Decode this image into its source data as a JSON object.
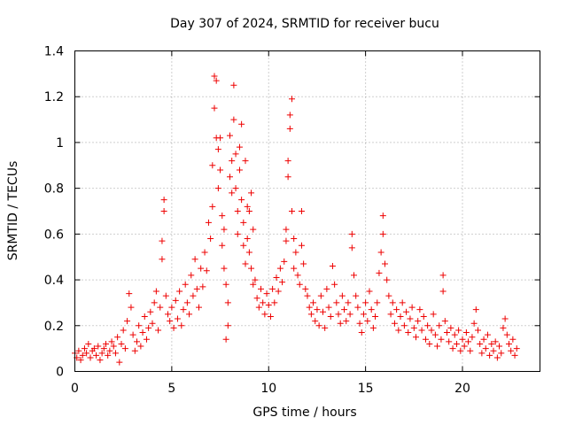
{
  "chart_data": {
    "type": "scatter",
    "title": "Day 307 of 2024, SRMTID for receiver bucu",
    "xlabel": "GPS time / hours",
    "ylabel": "SRMTID / TECUs",
    "xlim": [
      0,
      24
    ],
    "ylim": [
      0,
      1.4
    ],
    "xticks": [
      0,
      5,
      10,
      15,
      20
    ],
    "xtick_labels": [
      "0",
      "5",
      "10",
      "15",
      "20"
    ],
    "yticks": [
      0,
      0.2,
      0.4,
      0.6,
      0.8,
      1,
      1.2,
      1.4
    ],
    "ytick_labels": [
      "0",
      "0.2",
      "0.4",
      "0.6",
      "0.8",
      "1",
      "1.2",
      "1.4"
    ],
    "grid": true,
    "marker": "+",
    "series": [
      {
        "name": "SRMTID",
        "color": "#ee0000",
        "points": [
          [
            0.0,
            0.08
          ],
          [
            0.1,
            0.06
          ],
          [
            0.2,
            0.09
          ],
          [
            0.3,
            0.05
          ],
          [
            0.4,
            0.07
          ],
          [
            0.5,
            0.1
          ],
          [
            0.6,
            0.08
          ],
          [
            0.7,
            0.12
          ],
          [
            0.8,
            0.06
          ],
          [
            0.9,
            0.09
          ],
          [
            1.0,
            0.1
          ],
          [
            1.1,
            0.07
          ],
          [
            1.2,
            0.11
          ],
          [
            1.3,
            0.05
          ],
          [
            1.4,
            0.08
          ],
          [
            1.5,
            0.1
          ],
          [
            1.6,
            0.12
          ],
          [
            1.7,
            0.07
          ],
          [
            1.8,
            0.09
          ],
          [
            1.9,
            0.13
          ],
          [
            2.0,
            0.11
          ],
          [
            2.1,
            0.08
          ],
          [
            2.2,
            0.15
          ],
          [
            2.3,
            0.04
          ],
          [
            2.4,
            0.12
          ],
          [
            2.5,
            0.18
          ],
          [
            2.6,
            0.1
          ],
          [
            2.7,
            0.22
          ],
          [
            2.8,
            0.34
          ],
          [
            2.9,
            0.28
          ],
          [
            3.0,
            0.16
          ],
          [
            3.1,
            0.09
          ],
          [
            3.2,
            0.13
          ],
          [
            3.3,
            0.2
          ],
          [
            3.4,
            0.11
          ],
          [
            3.5,
            0.17
          ],
          [
            3.6,
            0.24
          ],
          [
            3.7,
            0.14
          ],
          [
            3.8,
            0.19
          ],
          [
            3.9,
            0.26
          ],
          [
            4.0,
            0.21
          ],
          [
            4.1,
            0.3
          ],
          [
            4.2,
            0.35
          ],
          [
            4.3,
            0.18
          ],
          [
            4.4,
            0.28
          ],
          [
            4.5,
            0.57
          ],
          [
            4.5,
            0.49
          ],
          [
            4.6,
            0.75
          ],
          [
            4.6,
            0.7
          ],
          [
            4.7,
            0.33
          ],
          [
            4.8,
            0.25
          ],
          [
            4.9,
            0.22
          ],
          [
            5.0,
            0.28
          ],
          [
            5.1,
            0.19
          ],
          [
            5.2,
            0.31
          ],
          [
            5.3,
            0.23
          ],
          [
            5.4,
            0.35
          ],
          [
            5.5,
            0.2
          ],
          [
            5.6,
            0.27
          ],
          [
            5.7,
            0.38
          ],
          [
            5.8,
            0.3
          ],
          [
            5.9,
            0.25
          ],
          [
            6.0,
            0.42
          ],
          [
            6.1,
            0.33
          ],
          [
            6.2,
            0.49
          ],
          [
            6.3,
            0.36
          ],
          [
            6.4,
            0.28
          ],
          [
            6.5,
            0.45
          ],
          [
            6.6,
            0.37
          ],
          [
            6.7,
            0.52
          ],
          [
            6.8,
            0.44
          ],
          [
            6.9,
            0.65
          ],
          [
            7.0,
            0.58
          ],
          [
            7.1,
            0.72
          ],
          [
            7.1,
            0.9
          ],
          [
            7.2,
            1.29
          ],
          [
            7.2,
            1.15
          ],
          [
            7.3,
            1.27
          ],
          [
            7.3,
            1.02
          ],
          [
            7.4,
            0.97
          ],
          [
            7.4,
            0.8
          ],
          [
            7.5,
            1.02
          ],
          [
            7.5,
            0.88
          ],
          [
            7.6,
            0.68
          ],
          [
            7.6,
            0.55
          ],
          [
            7.7,
            0.62
          ],
          [
            7.7,
            0.45
          ],
          [
            7.8,
            0.38
          ],
          [
            7.9,
            0.3
          ],
          [
            7.8,
            0.14
          ],
          [
            7.9,
            0.2
          ],
          [
            8.0,
            0.85
          ],
          [
            8.0,
            1.03
          ],
          [
            8.1,
            0.92
          ],
          [
            8.1,
            0.78
          ],
          [
            8.2,
            1.25
          ],
          [
            8.2,
            1.1
          ],
          [
            8.3,
            0.95
          ],
          [
            8.3,
            0.8
          ],
          [
            8.4,
            0.7
          ],
          [
            8.4,
            0.6
          ],
          [
            8.5,
            0.98
          ],
          [
            8.5,
            0.88
          ],
          [
            8.6,
            1.08
          ],
          [
            8.6,
            0.75
          ],
          [
            8.7,
            0.65
          ],
          [
            8.7,
            0.55
          ],
          [
            8.8,
            0.47
          ],
          [
            8.8,
            0.92
          ],
          [
            8.9,
            0.72
          ],
          [
            8.9,
            0.58
          ],
          [
            9.0,
            0.7
          ],
          [
            9.0,
            0.52
          ],
          [
            9.1,
            0.78
          ],
          [
            9.1,
            0.45
          ],
          [
            9.2,
            0.38
          ],
          [
            9.2,
            0.62
          ],
          [
            9.3,
            0.4
          ],
          [
            9.4,
            0.32
          ],
          [
            9.5,
            0.28
          ],
          [
            9.6,
            0.36
          ],
          [
            9.7,
            0.3
          ],
          [
            9.8,
            0.25
          ],
          [
            9.9,
            0.34
          ],
          [
            10.0,
            0.29
          ],
          [
            10.1,
            0.24
          ],
          [
            10.2,
            0.36
          ],
          [
            10.3,
            0.3
          ],
          [
            10.4,
            0.41
          ],
          [
            10.5,
            0.35
          ],
          [
            10.6,
            0.45
          ],
          [
            10.7,
            0.39
          ],
          [
            10.8,
            0.48
          ],
          [
            10.9,
            0.57
          ],
          [
            10.9,
            0.62
          ],
          [
            11.0,
            0.85
          ],
          [
            11.0,
            0.92
          ],
          [
            11.1,
            1.06
          ],
          [
            11.1,
            1.12
          ],
          [
            11.2,
            1.19
          ],
          [
            11.2,
            0.7
          ],
          [
            11.3,
            0.58
          ],
          [
            11.3,
            0.45
          ],
          [
            11.4,
            0.52
          ],
          [
            11.5,
            0.42
          ],
          [
            11.6,
            0.38
          ],
          [
            11.7,
            0.7
          ],
          [
            11.7,
            0.55
          ],
          [
            11.8,
            0.47
          ],
          [
            11.9,
            0.36
          ],
          [
            12.0,
            0.33
          ],
          [
            12.1,
            0.28
          ],
          [
            12.2,
            0.25
          ],
          [
            12.3,
            0.3
          ],
          [
            12.4,
            0.22
          ],
          [
            12.5,
            0.27
          ],
          [
            12.6,
            0.2
          ],
          [
            12.7,
            0.33
          ],
          [
            12.8,
            0.26
          ],
          [
            12.9,
            0.19
          ],
          [
            13.0,
            0.36
          ],
          [
            13.1,
            0.28
          ],
          [
            13.2,
            0.24
          ],
          [
            13.3,
            0.46
          ],
          [
            13.4,
            0.38
          ],
          [
            13.5,
            0.3
          ],
          [
            13.6,
            0.25
          ],
          [
            13.7,
            0.21
          ],
          [
            13.8,
            0.33
          ],
          [
            13.9,
            0.27
          ],
          [
            14.0,
            0.22
          ],
          [
            14.1,
            0.3
          ],
          [
            14.2,
            0.25
          ],
          [
            14.3,
            0.6
          ],
          [
            14.3,
            0.54
          ],
          [
            14.4,
            0.42
          ],
          [
            14.5,
            0.33
          ],
          [
            14.6,
            0.28
          ],
          [
            14.7,
            0.21
          ],
          [
            14.8,
            0.17
          ],
          [
            14.9,
            0.25
          ],
          [
            15.0,
            0.3
          ],
          [
            15.1,
            0.22
          ],
          [
            15.2,
            0.35
          ],
          [
            15.3,
            0.27
          ],
          [
            15.4,
            0.19
          ],
          [
            15.5,
            0.24
          ],
          [
            15.6,
            0.3
          ],
          [
            15.7,
            0.43
          ],
          [
            15.8,
            0.52
          ],
          [
            15.9,
            0.68
          ],
          [
            15.9,
            0.6
          ],
          [
            16.0,
            0.47
          ],
          [
            16.1,
            0.4
          ],
          [
            16.2,
            0.33
          ],
          [
            16.3,
            0.25
          ],
          [
            16.4,
            0.3
          ],
          [
            16.5,
            0.21
          ],
          [
            16.6,
            0.27
          ],
          [
            16.7,
            0.18
          ],
          [
            16.8,
            0.24
          ],
          [
            16.9,
            0.3
          ],
          [
            17.0,
            0.2
          ],
          [
            17.1,
            0.26
          ],
          [
            17.2,
            0.17
          ],
          [
            17.3,
            0.23
          ],
          [
            17.4,
            0.28
          ],
          [
            17.5,
            0.19
          ],
          [
            17.6,
            0.15
          ],
          [
            17.7,
            0.22
          ],
          [
            17.8,
            0.27
          ],
          [
            17.9,
            0.18
          ],
          [
            18.0,
            0.24
          ],
          [
            18.1,
            0.14
          ],
          [
            18.2,
            0.2
          ],
          [
            18.3,
            0.12
          ],
          [
            18.4,
            0.18
          ],
          [
            18.5,
            0.25
          ],
          [
            18.6,
            0.16
          ],
          [
            18.7,
            0.11
          ],
          [
            18.8,
            0.2
          ],
          [
            18.9,
            0.14
          ],
          [
            19.0,
            0.42
          ],
          [
            19.0,
            0.35
          ],
          [
            19.1,
            0.22
          ],
          [
            19.2,
            0.17
          ],
          [
            19.3,
            0.13
          ],
          [
            19.4,
            0.19
          ],
          [
            19.5,
            0.1
          ],
          [
            19.6,
            0.16
          ],
          [
            19.7,
            0.12
          ],
          [
            19.8,
            0.18
          ],
          [
            19.9,
            0.09
          ],
          [
            20.0,
            0.14
          ],
          [
            20.1,
            0.11
          ],
          [
            20.2,
            0.17
          ],
          [
            20.3,
            0.13
          ],
          [
            20.4,
            0.09
          ],
          [
            20.5,
            0.15
          ],
          [
            20.6,
            0.21
          ],
          [
            20.7,
            0.27
          ],
          [
            20.8,
            0.18
          ],
          [
            20.9,
            0.12
          ],
          [
            21.0,
            0.08
          ],
          [
            21.1,
            0.14
          ],
          [
            21.2,
            0.1
          ],
          [
            21.3,
            0.16
          ],
          [
            21.4,
            0.07
          ],
          [
            21.5,
            0.12
          ],
          [
            21.6,
            0.09
          ],
          [
            21.7,
            0.13
          ],
          [
            21.8,
            0.06
          ],
          [
            21.9,
            0.11
          ],
          [
            22.0,
            0.08
          ],
          [
            22.1,
            0.19
          ],
          [
            22.2,
            0.23
          ],
          [
            22.3,
            0.16
          ],
          [
            22.4,
            0.12
          ],
          [
            22.5,
            0.09
          ],
          [
            22.6,
            0.14
          ],
          [
            22.7,
            0.07
          ],
          [
            22.8,
            0.1
          ]
        ]
      }
    ]
  }
}
